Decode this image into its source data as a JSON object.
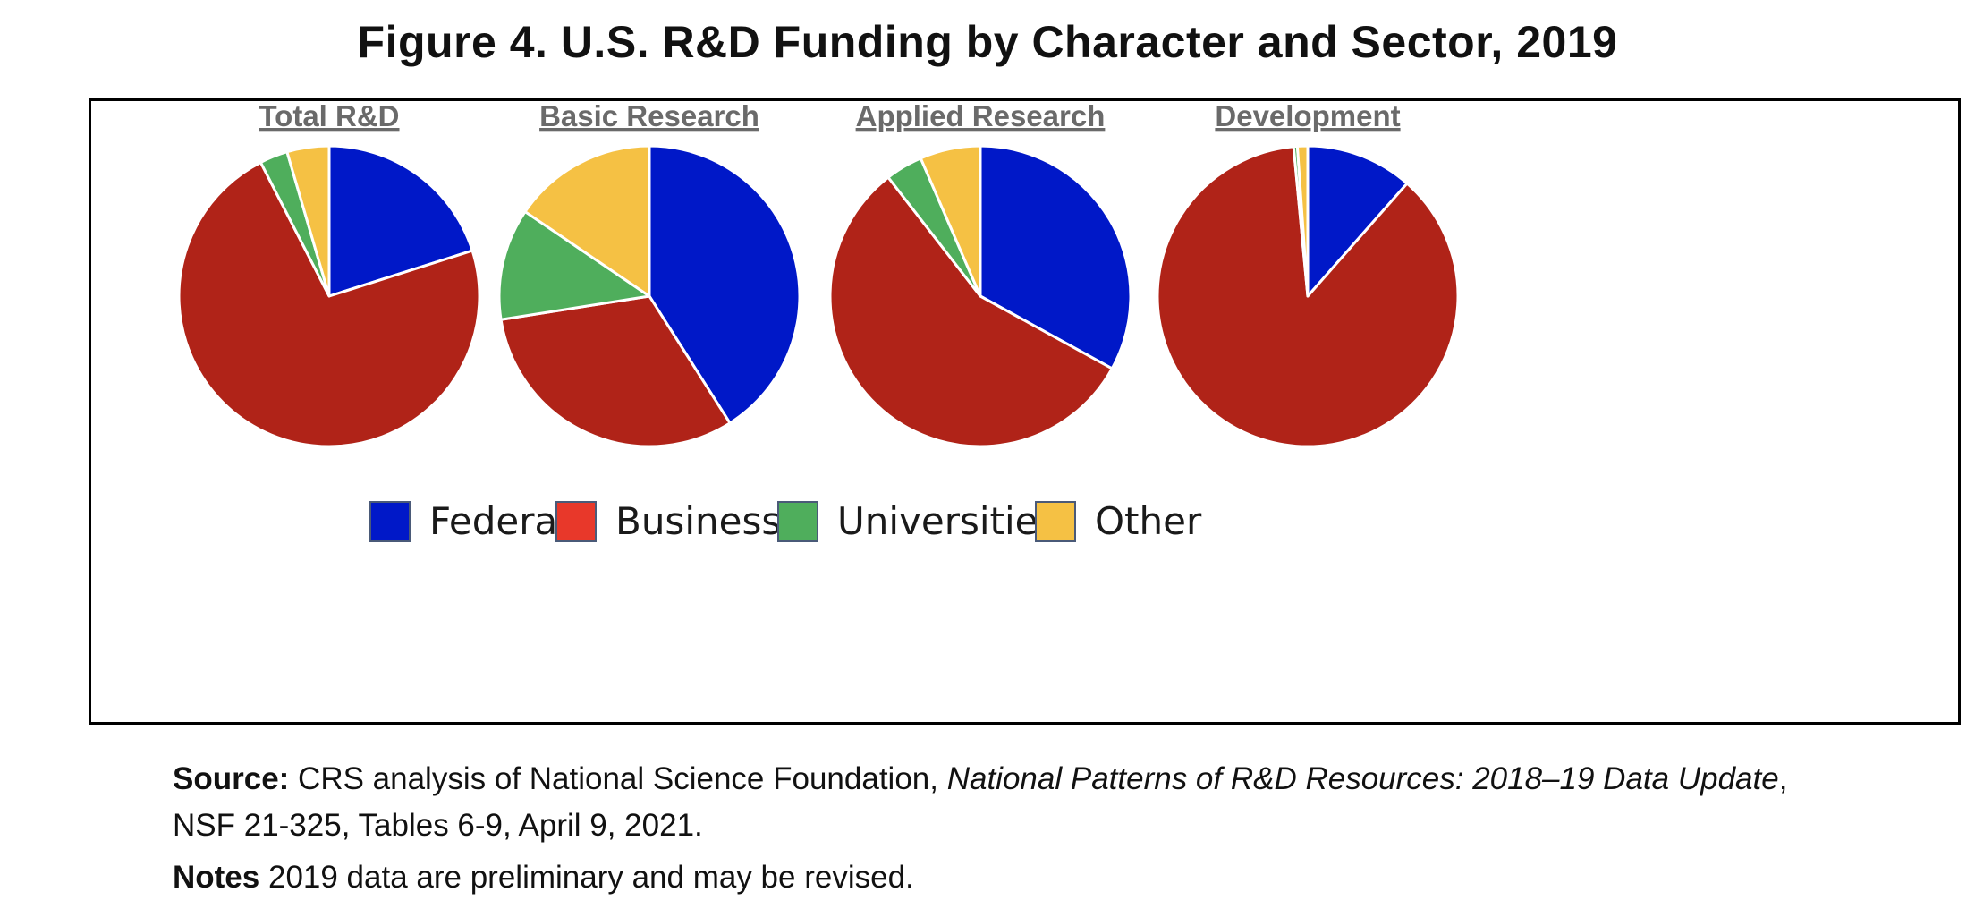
{
  "figure": {
    "title": "Figure 4. U.S. R&D Funding by Character and Sector, 2019"
  },
  "chart_data": {
    "type": "pie",
    "colors": {
      "Federal": "#0018c8",
      "Business": "#b02318",
      "Universities": "#4fae5c",
      "Other": "#f5c144"
    },
    "legend": {
      "placement": "bottom",
      "items": [
        "Federal",
        "Business",
        "Universities",
        "Other"
      ],
      "swatch_colors": [
        "#0018c8",
        "#e8382a",
        "#4fae5c",
        "#f5c144"
      ]
    },
    "pies": [
      {
        "title": "Total R&D",
        "categories": [
          "Federal",
          "Business",
          "Universities",
          "Other"
        ],
        "values": [
          20,
          72,
          3,
          4.5
        ]
      },
      {
        "title": "Basic Research",
        "categories": [
          "Federal",
          "Business",
          "Universities",
          "Other"
        ],
        "values": [
          41,
          31.5,
          12,
          15.5
        ]
      },
      {
        "title": "Applied Research",
        "categories": [
          "Federal",
          "Business",
          "Universities",
          "Other"
        ],
        "values": [
          33,
          56.5,
          4,
          6.5
        ]
      },
      {
        "title": "Development",
        "categories": [
          "Federal",
          "Business",
          "Universities",
          "Other"
        ],
        "values": [
          11.5,
          87,
          0.4,
          1.1
        ]
      }
    ]
  },
  "source": {
    "label": "Source:",
    "text_pre": " CRS analysis of National Science Foundation, ",
    "publication": "National Patterns of R&D Resources: 2018–19 Data Update",
    "text_post": ",",
    "line2": "NSF 21-325, Tables 6-9, April 9, 2021."
  },
  "notes": {
    "label": "Notes",
    "text": " 2019 data are preliminary and may be revised."
  }
}
